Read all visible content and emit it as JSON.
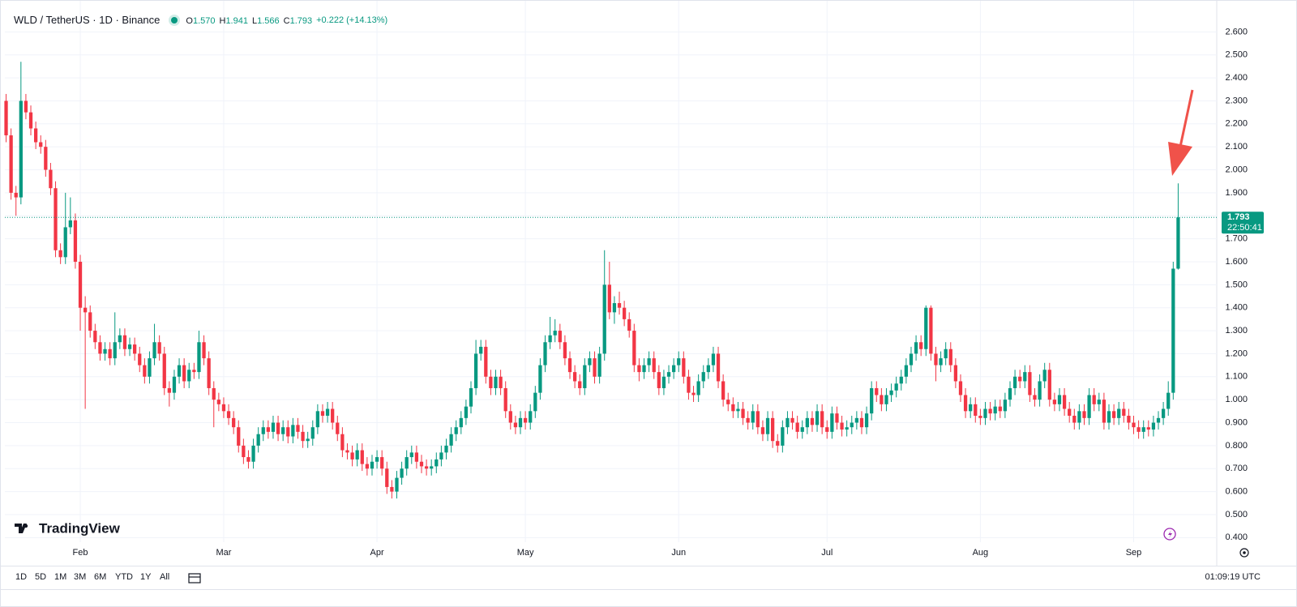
{
  "header": {
    "symbol": "WLD / TetherUS · 1D · Binance",
    "ohlc": [
      {
        "key": "O",
        "value": "1.570"
      },
      {
        "key": "H",
        "value": "1.941"
      },
      {
        "key": "L",
        "value": "1.566"
      },
      {
        "key": "C",
        "value": "1.793"
      }
    ],
    "change": "+0.222 (+14.13%)"
  },
  "watermark": "TradingView",
  "toolbar": {
    "ranges": [
      "1D",
      "5D",
      "1M",
      "3M",
      "6M",
      "YTD",
      "1Y",
      "All"
    ],
    "clock": "01:09:19 UTC"
  },
  "chart_data": {
    "type": "candlestick",
    "up_color": "#089981",
    "down_color": "#f23645",
    "countdown": "22:50:41",
    "grid": true,
    "xlim": [
      -0.25,
      244.8
    ],
    "xticks": [
      {
        "value": 15,
        "label": "Feb"
      },
      {
        "value": 44,
        "label": "Mar"
      },
      {
        "value": 75,
        "label": "Apr"
      },
      {
        "value": 105,
        "label": "May"
      },
      {
        "value": 136,
        "label": "Jun"
      },
      {
        "value": 166,
        "label": "Jul"
      },
      {
        "value": 197,
        "label": "Aug"
      },
      {
        "value": 228,
        "label": "Sep"
      }
    ],
    "ylim": [
      0.38,
      2.7
    ],
    "yticks": [
      {
        "value": 0.4,
        "label": "0.400"
      },
      {
        "value": 0.5,
        "label": "0.500"
      },
      {
        "value": 0.6,
        "label": "0.600"
      },
      {
        "value": 0.7,
        "label": "0.700"
      },
      {
        "value": 0.8,
        "label": "0.800"
      },
      {
        "value": 0.9,
        "label": "0.900"
      },
      {
        "value": 1.0,
        "label": "1.000"
      },
      {
        "value": 1.1,
        "label": "1.100"
      },
      {
        "value": 1.2,
        "label": "1.200"
      },
      {
        "value": 1.3,
        "label": "1.300"
      },
      {
        "value": 1.4,
        "label": "1.400"
      },
      {
        "value": 1.5,
        "label": "1.500"
      },
      {
        "value": 1.6,
        "label": "1.600"
      },
      {
        "value": 1.7,
        "label": "1.700"
      },
      {
        "value": 1.8,
        "label": "1.800"
      },
      {
        "value": 1.9,
        "label": "1.900"
      },
      {
        "value": 2.0,
        "label": "2.000"
      },
      {
        "value": 2.1,
        "label": "2.100"
      },
      {
        "value": 2.2,
        "label": "2.200"
      },
      {
        "value": 2.3,
        "label": "2.300"
      },
      {
        "value": 2.4,
        "label": "2.400"
      },
      {
        "value": 2.5,
        "label": "2.500"
      },
      {
        "value": 2.6,
        "label": "2.600"
      }
    ],
    "open": [
      2.3,
      2.15,
      1.9,
      1.88,
      2.3,
      2.25,
      2.18,
      2.12,
      2.1,
      2.0,
      1.92,
      1.65,
      1.62,
      1.75,
      1.78,
      1.6,
      1.4,
      1.38,
      1.3,
      1.25,
      1.2,
      1.22,
      1.18,
      1.25,
      1.28,
      1.22,
      1.24,
      1.2,
      1.15,
      1.1,
      1.18,
      1.25,
      1.2,
      1.05,
      1.03,
      1.1,
      1.15,
      1.08,
      1.13,
      1.12,
      1.25,
      1.18,
      1.05,
      1.0,
      0.98,
      0.95,
      0.92,
      0.88,
      0.8,
      0.75,
      0.73,
      0.8,
      0.85,
      0.88,
      0.86,
      0.9,
      0.85,
      0.88,
      0.84,
      0.89,
      0.86,
      0.82,
      0.83,
      0.88,
      0.95,
      0.93,
      0.96,
      0.9,
      0.85,
      0.78,
      0.77,
      0.74,
      0.78,
      0.72,
      0.7,
      0.73,
      0.75,
      0.7,
      0.62,
      0.6,
      0.66,
      0.7,
      0.75,
      0.77,
      0.73,
      0.71,
      0.7,
      0.71,
      0.74,
      0.77,
      0.8,
      0.85,
      0.88,
      0.92,
      0.97,
      1.05,
      1.2,
      1.23,
      1.1,
      1.05,
      1.1,
      1.05,
      0.95,
      0.9,
      0.88,
      0.92,
      0.9,
      0.95,
      1.03,
      1.15,
      1.25,
      1.28,
      1.3,
      1.25,
      1.18,
      1.12,
      1.08,
      1.05,
      1.15,
      1.18,
      1.1,
      1.2,
      1.5,
      1.38,
      1.42,
      1.4,
      1.35,
      1.3,
      1.15,
      1.12,
      1.15,
      1.18,
      1.12,
      1.05,
      1.1,
      1.12,
      1.15,
      1.18,
      1.1,
      1.03,
      1.02,
      1.08,
      1.12,
      1.15,
      1.2,
      1.08,
      1.0,
      0.98,
      0.95,
      0.96,
      0.92,
      0.9,
      0.95,
      0.88,
      0.85,
      0.92,
      0.82,
      0.8,
      0.88,
      0.92,
      0.9,
      0.86,
      0.88,
      0.92,
      0.89,
      0.95,
      0.88,
      0.86,
      0.94,
      0.9,
      0.87,
      0.88,
      0.9,
      0.92,
      0.88,
      0.94,
      1.05,
      1.02,
      0.98,
      1.02,
      1.04,
      1.07,
      1.1,
      1.15,
      1.2,
      1.25,
      1.22,
      1.4,
      1.2,
      1.15,
      1.18,
      1.22,
      1.15,
      1.08,
      1.02,
      0.95,
      0.98,
      0.93,
      0.92,
      0.96,
      0.94,
      0.97,
      0.95,
      1.0,
      1.05,
      1.1,
      1.08,
      1.12,
      1.02,
      1.0,
      1.08,
      1.13,
      1.0,
      0.98,
      1.02,
      0.96,
      0.93,
      0.9,
      0.95,
      0.92,
      1.02,
      0.98,
      1.0,
      0.9,
      0.95,
      0.92,
      0.96,
      0.93,
      0.9,
      0.88,
      0.86,
      0.88,
      0.87,
      0.9,
      0.92,
      0.96,
      1.03,
      1.57
    ],
    "high": [
      2.33,
      2.18,
      1.93,
      2.47,
      2.33,
      2.28,
      2.21,
      2.15,
      2.13,
      2.03,
      1.95,
      1.68,
      1.9,
      1.88,
      1.81,
      1.63,
      1.45,
      1.41,
      1.33,
      1.28,
      1.25,
      1.25,
      1.38,
      1.31,
      1.31,
      1.27,
      1.27,
      1.23,
      1.18,
      1.21,
      1.33,
      1.28,
      1.23,
      1.08,
      1.13,
      1.18,
      1.18,
      1.16,
      1.16,
      1.3,
      1.28,
      1.21,
      1.08,
      1.03,
      1.01,
      0.98,
      0.95,
      0.91,
      0.83,
      0.78,
      0.83,
      0.88,
      0.91,
      0.91,
      0.93,
      0.93,
      0.91,
      0.91,
      0.92,
      0.92,
      0.89,
      0.86,
      0.91,
      0.98,
      0.98,
      0.99,
      0.99,
      0.93,
      0.88,
      0.81,
      0.8,
      0.81,
      0.81,
      0.75,
      0.76,
      0.78,
      0.78,
      0.73,
      0.65,
      0.69,
      0.73,
      0.78,
      0.8,
      0.8,
      0.76,
      0.74,
      0.74,
      0.77,
      0.8,
      0.83,
      0.88,
      0.91,
      0.95,
      1.0,
      1.08,
      1.26,
      1.26,
      1.26,
      1.13,
      1.13,
      1.13,
      1.08,
      0.98,
      0.93,
      0.95,
      0.95,
      0.98,
      1.06,
      1.18,
      1.28,
      1.36,
      1.35,
      1.33,
      1.28,
      1.21,
      1.15,
      1.11,
      1.18,
      1.21,
      1.21,
      1.23,
      1.65,
      1.6,
      1.45,
      1.47,
      1.43,
      1.38,
      1.33,
      1.18,
      1.18,
      1.21,
      1.21,
      1.15,
      1.13,
      1.15,
      1.18,
      1.21,
      1.21,
      1.13,
      1.06,
      1.11,
      1.15,
      1.18,
      1.23,
      1.23,
      1.11,
      1.03,
      1.01,
      0.99,
      0.99,
      0.95,
      0.98,
      0.98,
      0.91,
      0.95,
      0.95,
      0.85,
      0.91,
      0.95,
      0.95,
      0.93,
      0.91,
      0.95,
      0.95,
      0.98,
      0.98,
      0.91,
      0.97,
      0.97,
      0.93,
      0.91,
      0.93,
      0.95,
      0.95,
      0.97,
      1.08,
      1.08,
      1.05,
      1.05,
      1.07,
      1.1,
      1.13,
      1.18,
      1.23,
      1.28,
      1.28,
      1.41,
      1.41,
      1.23,
      1.21,
      1.25,
      1.25,
      1.18,
      1.11,
      1.05,
      1.01,
      1.01,
      0.96,
      0.99,
      0.99,
      1.0,
      1.0,
      1.03,
      1.08,
      1.13,
      1.13,
      1.15,
      1.15,
      1.05,
      1.11,
      1.16,
      1.16,
      1.03,
      1.05,
      1.05,
      0.99,
      0.96,
      0.98,
      0.98,
      1.05,
      1.05,
      1.03,
      1.03,
      0.98,
      0.98,
      0.99,
      0.99,
      0.96,
      0.93,
      0.91,
      0.91,
      0.91,
      0.93,
      0.95,
      0.99,
      1.08,
      1.6,
      1.941
    ],
    "low": [
      2.12,
      1.87,
      1.8,
      1.85,
      2.22,
      2.15,
      2.09,
      2.07,
      1.97,
      1.89,
      1.62,
      1.59,
      1.59,
      1.72,
      1.57,
      1.3,
      0.96,
      1.27,
      1.22,
      1.17,
      1.17,
      1.15,
      1.15,
      1.22,
      1.19,
      1.19,
      1.17,
      1.12,
      1.07,
      1.07,
      1.15,
      1.17,
      1.02,
      0.97,
      1.0,
      1.07,
      1.05,
      1.05,
      1.09,
      1.09,
      1.15,
      1.02,
      0.88,
      0.95,
      0.92,
      0.89,
      0.85,
      0.77,
      0.72,
      0.7,
      0.7,
      0.77,
      0.82,
      0.83,
      0.83,
      0.82,
      0.82,
      0.81,
      0.81,
      0.83,
      0.79,
      0.79,
      0.8,
      0.85,
      0.9,
      0.9,
      0.87,
      0.82,
      0.75,
      0.74,
      0.71,
      0.71,
      0.69,
      0.67,
      0.67,
      0.7,
      0.67,
      0.59,
      0.57,
      0.57,
      0.63,
      0.67,
      0.72,
      0.7,
      0.68,
      0.67,
      0.67,
      0.68,
      0.71,
      0.74,
      0.77,
      0.82,
      0.85,
      0.89,
      0.94,
      1.02,
      1.17,
      1.07,
      1.02,
      1.02,
      1.02,
      0.92,
      0.87,
      0.85,
      0.85,
      0.87,
      0.87,
      0.92,
      1.0,
      1.12,
      1.22,
      1.25,
      1.22,
      1.15,
      1.09,
      1.05,
      1.02,
      1.02,
      1.12,
      1.07,
      1.07,
      1.17,
      1.35,
      1.33,
      1.37,
      1.32,
      1.27,
      1.12,
      1.08,
      1.09,
      1.12,
      1.09,
      1.02,
      1.02,
      1.07,
      1.09,
      1.12,
      1.07,
      1.0,
      0.99,
      0.99,
      1.05,
      1.09,
      1.12,
      1.05,
      0.97,
      0.95,
      0.92,
      0.92,
      0.89,
      0.87,
      0.87,
      0.85,
      0.82,
      0.82,
      0.79,
      0.77,
      0.77,
      0.85,
      0.87,
      0.83,
      0.83,
      0.85,
      0.86,
      0.86,
      0.85,
      0.83,
      0.83,
      0.87,
      0.84,
      0.84,
      0.85,
      0.87,
      0.85,
      0.85,
      0.91,
      0.99,
      0.95,
      0.95,
      0.99,
      1.01,
      1.04,
      1.07,
      1.12,
      1.17,
      1.19,
      1.19,
      1.17,
      1.08,
      1.12,
      1.15,
      1.12,
      1.05,
      0.99,
      0.92,
      0.92,
      0.9,
      0.89,
      0.89,
      0.91,
      0.91,
      0.92,
      0.92,
      0.97,
      1.02,
      1.05,
      1.05,
      0.99,
      0.97,
      0.97,
      1.05,
      0.97,
      0.95,
      0.95,
      0.93,
      0.9,
      0.87,
      0.87,
      0.89,
      0.89,
      0.95,
      0.95,
      0.87,
      0.87,
      0.89,
      0.89,
      0.9,
      0.87,
      0.85,
      0.83,
      0.83,
      0.84,
      0.84,
      0.87,
      0.89,
      0.93,
      1.0,
      1.566
    ],
    "close": [
      2.15,
      1.9,
      1.88,
      2.3,
      2.25,
      2.18,
      2.12,
      2.1,
      2.0,
      1.92,
      1.65,
      1.62,
      1.75,
      1.78,
      1.6,
      1.4,
      1.38,
      1.3,
      1.25,
      1.2,
      1.22,
      1.18,
      1.25,
      1.28,
      1.22,
      1.24,
      1.2,
      1.15,
      1.1,
      1.18,
      1.25,
      1.2,
      1.05,
      1.03,
      1.1,
      1.15,
      1.08,
      1.13,
      1.12,
      1.25,
      1.18,
      1.05,
      1.0,
      0.98,
      0.95,
      0.92,
      0.88,
      0.8,
      0.75,
      0.73,
      0.8,
      0.85,
      0.88,
      0.86,
      0.9,
      0.85,
      0.88,
      0.84,
      0.89,
      0.86,
      0.82,
      0.83,
      0.88,
      0.95,
      0.93,
      0.96,
      0.9,
      0.85,
      0.78,
      0.77,
      0.74,
      0.78,
      0.72,
      0.7,
      0.73,
      0.75,
      0.7,
      0.62,
      0.6,
      0.66,
      0.7,
      0.75,
      0.77,
      0.73,
      0.71,
      0.7,
      0.71,
      0.74,
      0.77,
      0.8,
      0.85,
      0.88,
      0.92,
      0.97,
      1.05,
      1.2,
      1.23,
      1.1,
      1.05,
      1.1,
      1.05,
      0.95,
      0.9,
      0.88,
      0.92,
      0.9,
      0.95,
      1.03,
      1.15,
      1.25,
      1.28,
      1.3,
      1.25,
      1.18,
      1.12,
      1.08,
      1.05,
      1.15,
      1.18,
      1.1,
      1.2,
      1.5,
      1.38,
      1.42,
      1.4,
      1.35,
      1.3,
      1.15,
      1.12,
      1.15,
      1.18,
      1.12,
      1.05,
      1.1,
      1.12,
      1.15,
      1.18,
      1.1,
      1.03,
      1.02,
      1.08,
      1.12,
      1.15,
      1.2,
      1.08,
      1.0,
      0.98,
      0.95,
      0.96,
      0.92,
      0.9,
      0.95,
      0.88,
      0.85,
      0.92,
      0.82,
      0.8,
      0.88,
      0.92,
      0.9,
      0.86,
      0.88,
      0.92,
      0.89,
      0.95,
      0.88,
      0.86,
      0.94,
      0.9,
      0.87,
      0.88,
      0.9,
      0.92,
      0.88,
      0.94,
      1.05,
      1.02,
      0.98,
      1.02,
      1.04,
      1.07,
      1.1,
      1.15,
      1.2,
      1.25,
      1.22,
      1.4,
      1.2,
      1.15,
      1.18,
      1.22,
      1.15,
      1.08,
      1.02,
      0.95,
      0.98,
      0.93,
      0.92,
      0.96,
      0.94,
      0.97,
      0.95,
      1.0,
      1.05,
      1.1,
      1.08,
      1.12,
      1.02,
      1.0,
      1.08,
      1.13,
      1.0,
      0.98,
      1.02,
      0.96,
      0.93,
      0.9,
      0.95,
      0.92,
      1.02,
      0.98,
      1.0,
      0.9,
      0.95,
      0.92,
      0.96,
      0.93,
      0.9,
      0.88,
      0.86,
      0.88,
      0.87,
      0.9,
      0.92,
      0.96,
      1.03,
      1.57,
      1.793
    ]
  }
}
